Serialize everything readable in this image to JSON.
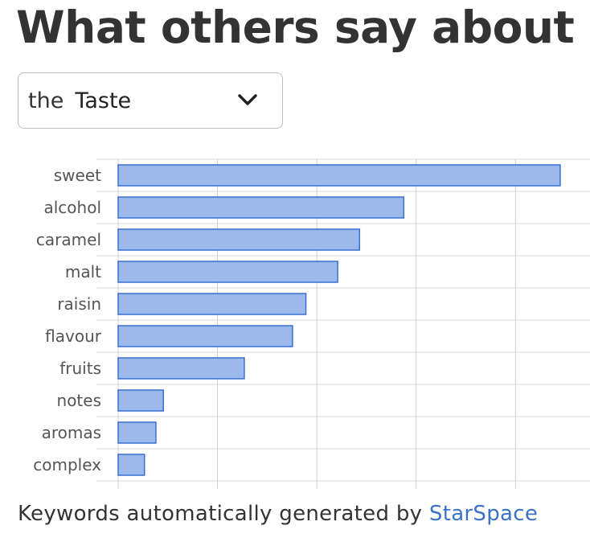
{
  "header": {
    "title": "What others say about"
  },
  "selector": {
    "prefix": "the",
    "selected": "Taste"
  },
  "footer": {
    "text": "Keywords automatically generated by",
    "link": "StarSpace"
  },
  "colors": {
    "bar_fill": "#9db8ea",
    "bar_stroke": "#3b6fd0",
    "link": "#3a72c9",
    "grid": "#d9d9d9"
  },
  "chart_data": {
    "type": "bar",
    "orientation": "horizontal",
    "title": "",
    "xlabel": "",
    "ylabel": "",
    "categories": [
      "sweet",
      "alcohol",
      "caramel",
      "malt",
      "raisin",
      "flavour",
      "fruits",
      "notes",
      "aromas",
      "complex"
    ],
    "values": [
      89,
      57.5,
      48.6,
      44.2,
      37.8,
      35.1,
      25.4,
      9.1,
      7.6,
      5.3
    ],
    "xlim": [
      0,
      95
    ],
    "x_gridlines": [
      0,
      20,
      40,
      60,
      80
    ],
    "grid": true,
    "x_tick_labels_shown": false
  }
}
